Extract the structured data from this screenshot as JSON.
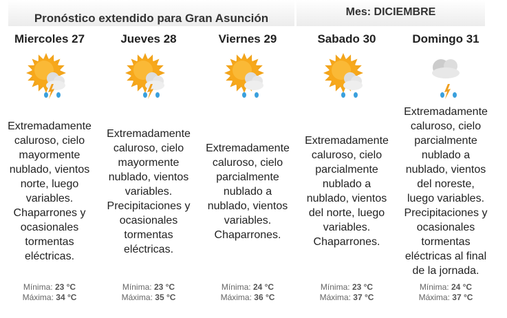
{
  "header": {
    "title": "Pronóstico extendido para Gran Asunción",
    "month": "Mes: DICIEMBRE"
  },
  "min_label": "Mínima:",
  "max_label": "Máxima:",
  "days": [
    {
      "name": "Miercoles 27",
      "icon": "sun-cloud-storm-rain-icon",
      "desc": "Extremadamente\ncaluroso, cielo\nmayormente\nnublado, vientos\nnorte, luego\nvariables.\nChaparrones y\nocasionales\ntormentas\neléctricas.",
      "min": "23 °C",
      "max": "34 °C"
    },
    {
      "name": "Jueves 28",
      "icon": "sun-cloud-storm-rain-icon",
      "desc": "Extremadamente\ncaluroso, cielo\nmayormente\nnublado, vientos\nvariables.\nPrecipitaciones y\nocasionales\ntormentas\neléctricas.",
      "min": "23 °C",
      "max": "35 °C"
    },
    {
      "name": "Viernes 29",
      "icon": "sun-cloud-rain-icon",
      "desc": "Extremadamente\ncaluroso, cielo\nparcialmente\nnublado a\nnublado, vientos\nvariables.\nChaparrones.",
      "min": "24 °C",
      "max": "36 °C"
    },
    {
      "name": "Sabado 30",
      "icon": "sun-cloud-rain-icon",
      "desc": "Extremadamente\ncaluroso, cielo\nparcialmente\nnublado a\nnublado, vientos\ndel norte, luego\nvariables.\nChaparrones.",
      "min": "23 °C",
      "max": "37 °C"
    },
    {
      "name": "Domingo 31",
      "icon": "cloud-storm-rain-icon",
      "desc": "Extremadamente\ncaluroso, cielo\nparcialmente\nnublado a\nnublado, vientos\ndel noreste,\nluego variables.\nPrecipitaciones y\nocasionales\ntormentas\neléctricas al final\nde la jornada.",
      "min": "24 °C",
      "max": "37 °C"
    }
  ]
}
